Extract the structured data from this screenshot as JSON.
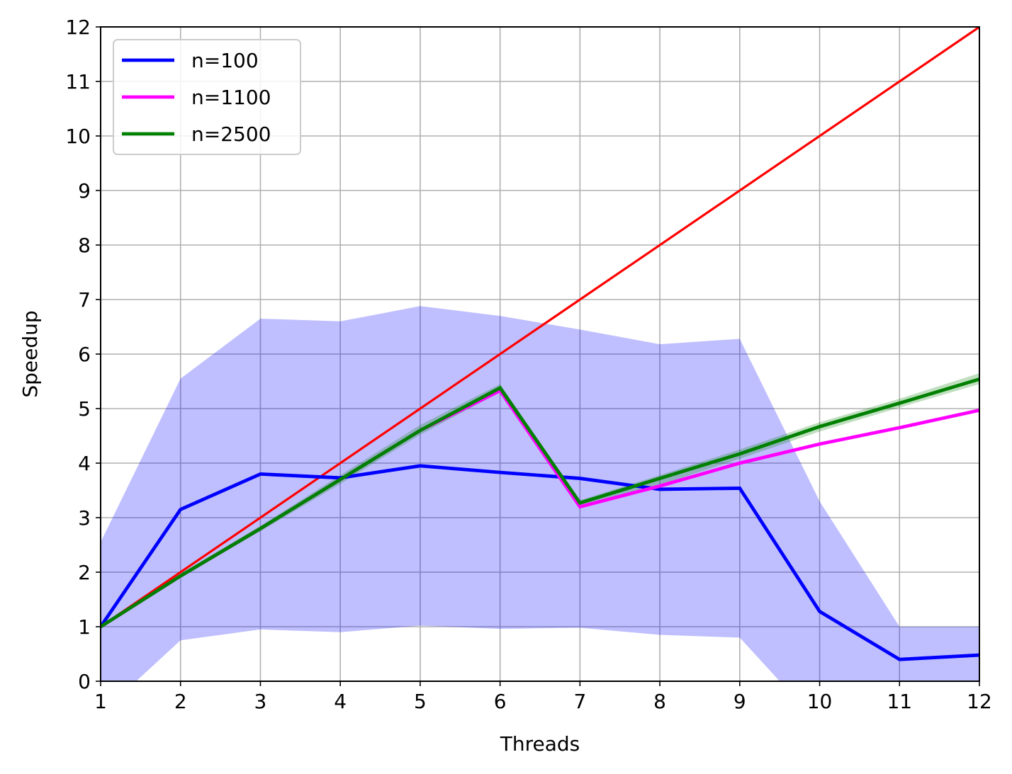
{
  "chart_data": {
    "type": "line",
    "title": "",
    "xlabel": "Threads",
    "ylabel": "Speedup",
    "xlim": [
      1,
      12
    ],
    "ylim": [
      0,
      12
    ],
    "xticks": [
      "1",
      "2",
      "3",
      "4",
      "5",
      "6",
      "7",
      "8",
      "9",
      "10",
      "11",
      "12"
    ],
    "yticks": [
      "0",
      "1",
      "2",
      "3",
      "4",
      "5",
      "6",
      "7",
      "8",
      "9",
      "10",
      "11",
      "12"
    ],
    "grid": true,
    "legend_position": "top-left",
    "x": [
      1,
      2,
      3,
      4,
      5,
      6,
      7,
      8,
      9,
      10,
      11,
      12
    ],
    "bands": [
      {
        "for_series": "n=100",
        "color": "#0000ff",
        "opacity": 0.25,
        "lower": [
          -0.6,
          0.75,
          0.95,
          0.9,
          1.02,
          0.96,
          0.98,
          0.85,
          0.8,
          -0.8,
          0.0,
          0.0
        ],
        "upper": [
          2.55,
          5.55,
          6.65,
          6.6,
          6.88,
          6.7,
          6.45,
          6.18,
          6.28,
          3.3,
          1.0,
          1.0
        ]
      },
      {
        "for_series": "n=2500",
        "color": "#008000",
        "opacity": 0.25,
        "lower": [
          1.0,
          1.9,
          2.75,
          3.62,
          4.52,
          5.3,
          3.22,
          3.6,
          4.08,
          4.58,
          5.02,
          5.45
        ],
        "upper": [
          1.0,
          1.98,
          2.85,
          3.78,
          4.7,
          5.45,
          3.32,
          3.78,
          4.25,
          4.75,
          5.18,
          5.65
        ]
      }
    ],
    "series": [
      {
        "name": "n=100",
        "color": "#0000ff",
        "values": [
          1.0,
          3.15,
          3.8,
          3.73,
          3.95,
          3.83,
          3.72,
          3.52,
          3.54,
          1.28,
          0.4,
          0.48
        ]
      },
      {
        "name": "n=1100",
        "color": "#ff00ff",
        "values": [
          1.0,
          1.93,
          2.8,
          3.7,
          4.6,
          5.33,
          3.2,
          3.58,
          4.0,
          4.35,
          4.65,
          4.97
        ]
      },
      {
        "name": "n=2500",
        "color": "#008000",
        "values": [
          1.0,
          1.93,
          2.8,
          3.7,
          4.6,
          5.38,
          3.27,
          3.72,
          4.17,
          4.67,
          5.1,
          5.54
        ]
      }
    ],
    "reference_line": {
      "color": "#ff0000",
      "x": [
        1,
        12
      ],
      "y": [
        1,
        12
      ]
    }
  }
}
